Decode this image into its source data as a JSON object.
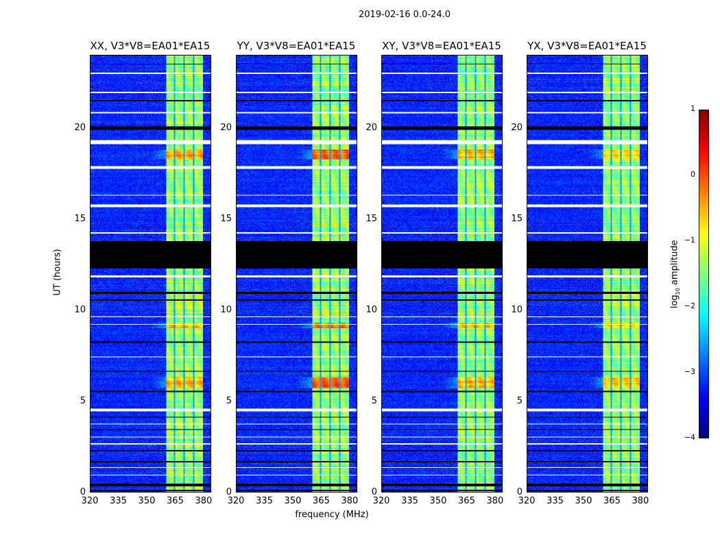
{
  "chart_data": {
    "type": "heatmap",
    "suptitle": "2019-02-16 0.0-24.0",
    "panels": [
      {
        "title": "XX, V3*V8=EA01*EA15",
        "hot": 0.8
      },
      {
        "title": "YY, V3*V8=EA01*EA15",
        "hot": 1.2
      },
      {
        "title": "XY, V3*V8=EA01*EA15",
        "hot": 0.8
      },
      {
        "title": "YX, V3*V8=EA01*EA15",
        "hot": 0.7
      }
    ],
    "xlabel": "frequency (MHz)",
    "ylabel": "UT (hours)",
    "xlim": [
      320,
      384
    ],
    "ylim": [
      0,
      24
    ],
    "xticks": [
      320,
      335,
      350,
      365,
      380
    ],
    "yticks": [
      0,
      5,
      10,
      15,
      20
    ],
    "colorbar": {
      "label": "log10 amplitude",
      "label_main": "log",
      "label_sub": "10",
      "label_tail": " amplitude",
      "range": [
        -4,
        1
      ],
      "ticks": [
        1,
        0,
        -1,
        -2,
        -3,
        -4
      ],
      "tick_labels": [
        "1",
        "0",
        "−1",
        "−2",
        "−3",
        "−4"
      ],
      "colormap": "jet"
    },
    "background_level": -3.2,
    "band": {
      "range_mhz": [
        360.5,
        380
      ],
      "level": -1.4,
      "subband_gaps_mhz": [
        365,
        370,
        375
      ]
    },
    "hot_hours": [
      [
        5.7,
        6.3
      ],
      [
        18.3,
        18.8
      ],
      [
        9.0,
        9.3
      ]
    ],
    "flagged_black_hours": [
      [
        12.3,
        13.8
      ],
      [
        19.9,
        20.1
      ],
      [
        0.3,
        0.45
      ],
      [
        2.2,
        2.3
      ],
      [
        1.6,
        1.7
      ],
      [
        10.5,
        10.6
      ],
      [
        5.5,
        5.55
      ],
      [
        8.2,
        8.25
      ],
      [
        3.4,
        3.45
      ],
      [
        21.5,
        21.55
      ],
      [
        23.5,
        23.55
      ],
      [
        0.05,
        0.1
      ],
      [
        4.1,
        4.15
      ],
      [
        6.6,
        6.65
      ],
      [
        10.9,
        11.0
      ]
    ],
    "flagged_white_hours": [
      [
        19.1,
        19.35
      ],
      [
        17.75,
        17.9
      ],
      [
        15.65,
        15.8
      ],
      [
        4.45,
        4.6
      ],
      [
        0.9,
        0.95
      ],
      [
        1.3,
        1.35
      ],
      [
        2.6,
        2.65
      ],
      [
        3.0,
        3.05
      ],
      [
        3.7,
        3.75
      ],
      [
        7.4,
        7.45
      ],
      [
        9.2,
        9.25
      ],
      [
        9.6,
        9.65
      ],
      [
        11.8,
        11.9
      ],
      [
        13.5,
        13.55
      ],
      [
        14.2,
        14.28
      ],
      [
        16.3,
        16.35
      ],
      [
        20.8,
        20.9
      ],
      [
        21.95,
        22.0
      ],
      [
        23.0,
        23.05
      ]
    ]
  }
}
